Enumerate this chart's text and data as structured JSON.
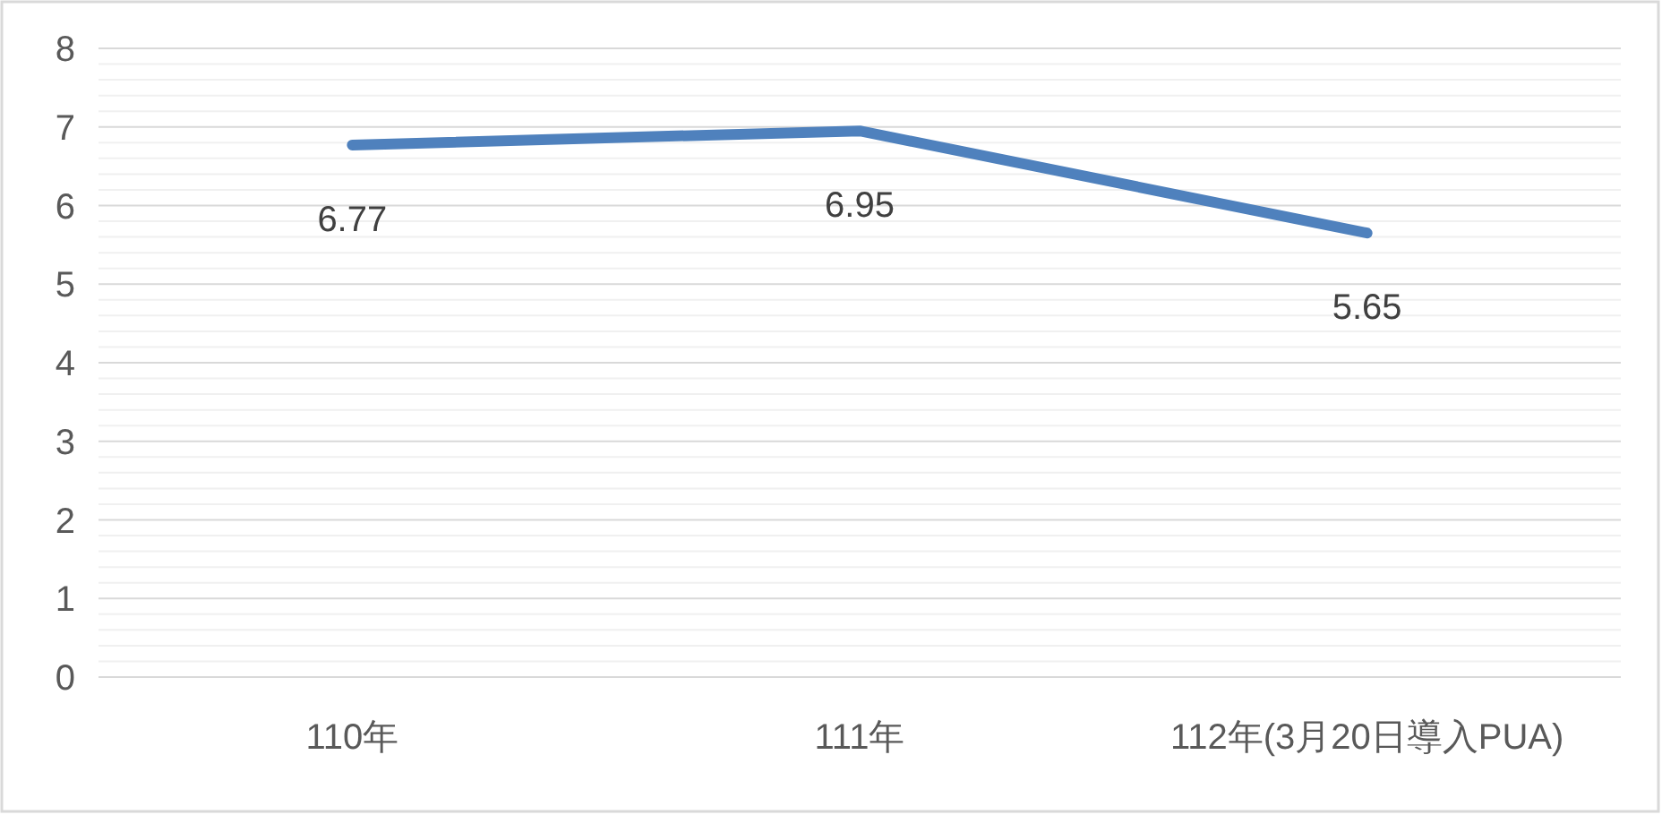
{
  "chart_data": {
    "type": "line",
    "categories": [
      "110年",
      "111年",
      "112年(3月20日導入PUA)"
    ],
    "series": [
      {
        "color": "#4f81bd",
        "values": [
          6.77,
          6.95,
          5.65
        ]
      }
    ],
    "data_labels": true,
    "ylim": [
      0,
      8
    ],
    "yticks": [
      0,
      {
        "value": 0.2,
        "label": null
      },
      {
        "value": 0.4,
        "label": null
      },
      {
        "value": 0.6,
        "label": null
      },
      {
        "value": 0.8,
        "label": null
      },
      1,
      {
        "value": 1.2,
        "label": null
      },
      {
        "value": 1.4,
        "label": null
      },
      {
        "value": 1.6,
        "label": null
      },
      {
        "value": 1.8,
        "label": null
      },
      2,
      {
        "value": 2.2,
        "label": null
      },
      {
        "value": 2.4,
        "label": null
      },
      {
        "value": 2.6,
        "label": null
      },
      {
        "value": 2.8,
        "label": null
      },
      3,
      {
        "value": 3.2,
        "label": null
      },
      {
        "value": 3.4,
        "label": null
      },
      {
        "value": 3.6,
        "label": null
      },
      {
        "value": 3.8,
        "label": null
      },
      4,
      {
        "value": 4.2,
        "label": null
      },
      {
        "value": 4.4,
        "label": null
      },
      {
        "value": 4.6,
        "label": null
      },
      {
        "value": 4.8,
        "label": null
      },
      5,
      {
        "value": 5.2,
        "label": null
      },
      {
        "value": 5.4,
        "label": null
      },
      {
        "value": 5.6,
        "label": null
      },
      {
        "value": 5.8,
        "label": null
      },
      6,
      {
        "value": 6.2,
        "label": null
      },
      {
        "value": 6.4,
        "label": null
      },
      {
        "value": 6.6,
        "label": null
      },
      {
        "value": 6.8,
        "label": null
      },
      7,
      {
        "value": 7.2,
        "label": null
      },
      {
        "value": 7.4,
        "label": null
      },
      {
        "value": 7.6,
        "label": null
      },
      {
        "value": 7.8,
        "label": null
      },
      8
    ],
    "grid": "y",
    "marker": "none",
    "line_style": "solid"
  }
}
